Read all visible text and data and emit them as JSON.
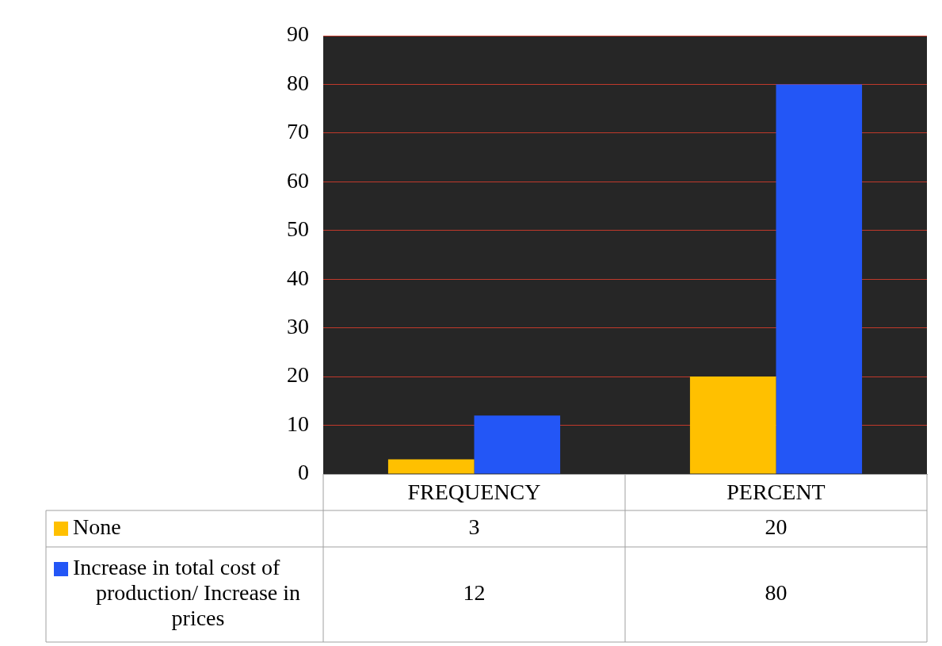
{
  "chart_data": {
    "type": "bar",
    "categories": [
      "FREQUENCY",
      "PERCENT"
    ],
    "series": [
      {
        "name": "None",
        "color": "#ffc000",
        "values": [
          3,
          20
        ]
      },
      {
        "name": "Increase in total cost of production/ Increase in prices",
        "color": "#2356f6",
        "values": [
          12,
          80
        ]
      }
    ],
    "ylim": [
      0,
      90
    ],
    "yticks": [
      0,
      10,
      20,
      30,
      40,
      50,
      60,
      70,
      80,
      90
    ],
    "grid": "y",
    "legend": "bottom",
    "data_labels": true
  }
}
